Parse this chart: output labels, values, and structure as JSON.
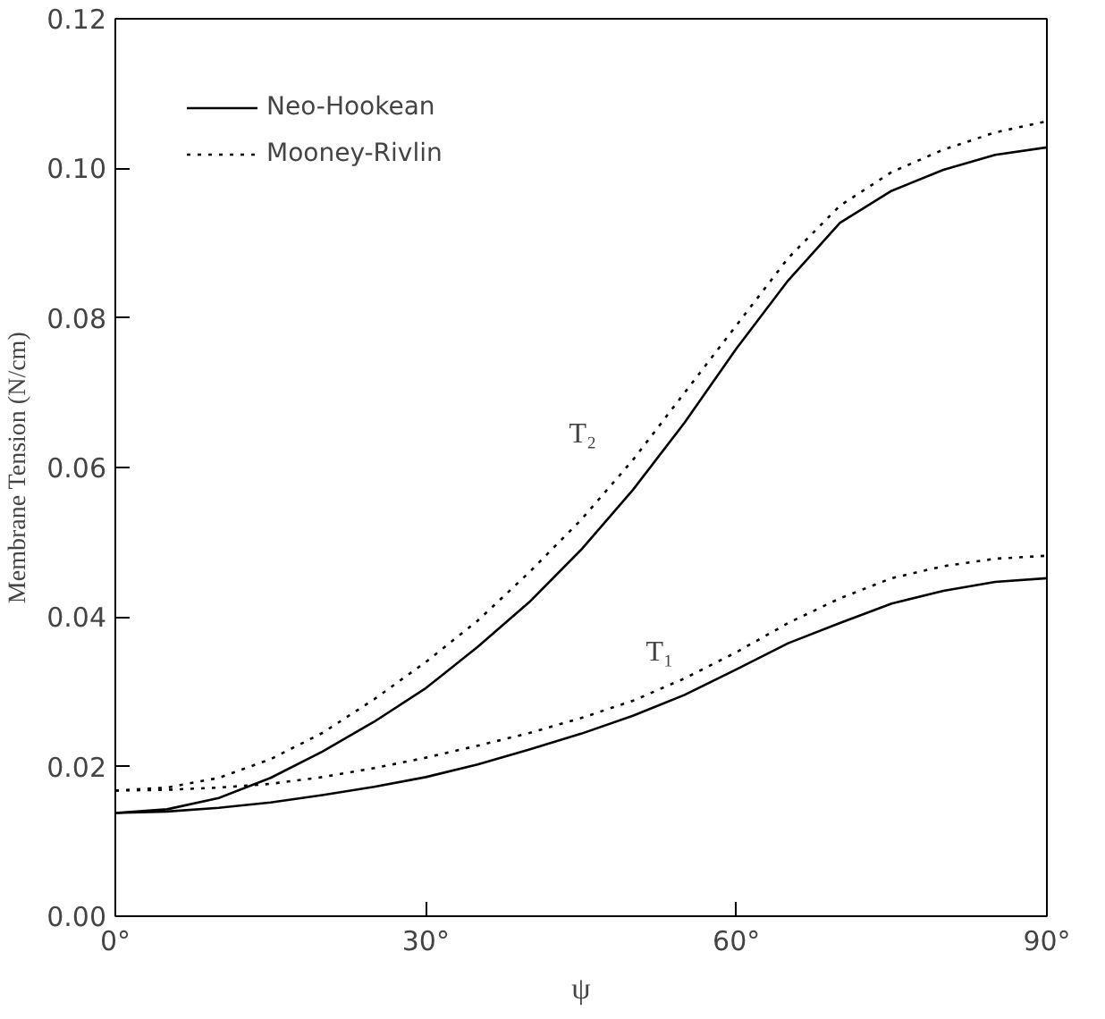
{
  "chart_data": {
    "type": "line",
    "xlabel": "ψ",
    "ylabel": "Membrane Tension (N/cm)",
    "x": [
      0,
      5,
      10,
      15,
      20,
      25,
      30,
      35,
      40,
      45,
      50,
      55,
      60,
      65,
      70,
      75,
      80,
      85,
      90
    ],
    "series": [
      {
        "name": "Neo-Hookean",
        "color": "#000000",
        "line_style": "solid",
        "values": [
          0.0138,
          0.0143,
          0.0158,
          0.0185,
          0.022,
          0.026,
          0.0305,
          0.036,
          0.042,
          0.049,
          0.057,
          0.066,
          0.0759,
          0.085,
          0.0927,
          0.097,
          0.0998,
          0.1018,
          0.1028
        ]
      },
      {
        "name": "Mooney-Rivlin",
        "color": "#000000",
        "line_style": "dotted",
        "values": [
          0.0168,
          0.0172,
          0.0185,
          0.021,
          0.0245,
          0.029,
          0.034,
          0.0395,
          0.046,
          0.053,
          0.061,
          0.07,
          0.079,
          0.088,
          0.095,
          0.0995,
          0.1025,
          0.1048,
          0.1063
        ]
      },
      {
        "color": "#000000",
        "line_style": "solid",
        "values": [
          0.0138,
          0.014,
          0.0145,
          0.0152,
          0.0162,
          0.0173,
          0.0186,
          0.0203,
          0.0223,
          0.0244,
          0.0268,
          0.0296,
          0.033,
          0.0365,
          0.0392,
          0.0418,
          0.0435,
          0.0447,
          0.0452
        ]
      },
      {
        "color": "#000000",
        "line_style": "dotted",
        "values": [
          0.0168,
          0.0169,
          0.0172,
          0.0177,
          0.0186,
          0.0198,
          0.0212,
          0.0228,
          0.0245,
          0.0265,
          0.0288,
          0.0318,
          0.0353,
          0.0392,
          0.0425,
          0.0452,
          0.0468,
          0.0478,
          0.0482
        ]
      }
    ],
    "annotations": [
      "T₂",
      "T₁"
    ],
    "xlim": [
      0,
      90
    ],
    "xticks": [
      {
        "value": 0,
        "label": "0°"
      },
      {
        "value": 30,
        "label": "30°"
      },
      {
        "value": 60,
        "label": "60°"
      },
      {
        "value": 90,
        "label": "90°"
      }
    ],
    "ylim": [
      0,
      0.12
    ],
    "yticks": [
      {
        "value": 0,
        "label": "0.00"
      },
      {
        "value": 0.02,
        "label": "0.02"
      },
      {
        "value": 0.04,
        "label": "0.04"
      },
      {
        "value": 0.06,
        "label": "0.06"
      },
      {
        "value": 0.08,
        "label": "0.08"
      },
      {
        "value": 0.1,
        "label": "0.10"
      },
      {
        "value": 0.12,
        "label": "0.12"
      }
    ],
    "grid": false,
    "legend": "top left"
  }
}
